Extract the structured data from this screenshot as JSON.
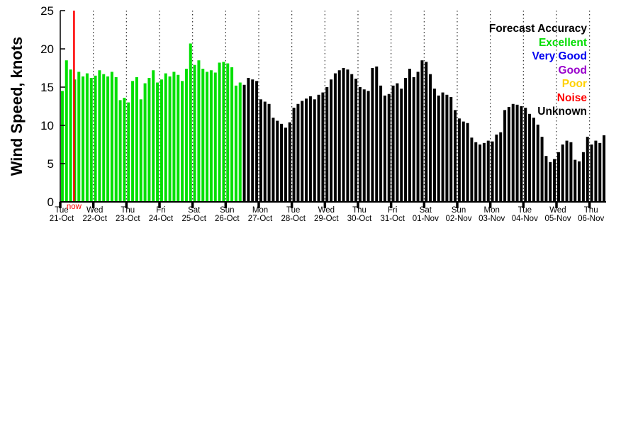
{
  "figure": {
    "ylabel": "Wind Speed, knots",
    "now_label": "now",
    "now_color": "#ff0000",
    "background": "#ffffff"
  },
  "legend": {
    "title": "Forecast Accuracy",
    "entries": [
      {
        "label": "Excellent",
        "color": "#00dd00"
      },
      {
        "label": "Very Good",
        "color": "#0000f0"
      },
      {
        "label": "Good",
        "color": "#9900cc"
      },
      {
        "label": "Poor",
        "color": "#ffd000"
      },
      {
        "label": "Noise",
        "color": "#ff0000"
      },
      {
        "label": "Unknown",
        "color": "#000000"
      }
    ]
  },
  "chart_data": {
    "type": "bar",
    "title": "",
    "xlabel": "",
    "ylabel": "Wind Speed, knots",
    "ylim": [
      0,
      25
    ],
    "yticks": [
      0,
      5,
      10,
      15,
      20,
      25
    ],
    "grid": "vertical-dotted-at-day-boundaries",
    "legend_position": "upper-right",
    "hours_per_point": 3,
    "total_days": 16.5,
    "now_hours": 10,
    "excellent_count": 44,
    "bar_colors": {
      "excellent": "#00df00",
      "unknown": "#000000"
    },
    "x_day_labels": [
      {
        "day": "Tue",
        "date": "21-Oct"
      },
      {
        "day": "Wed",
        "date": "22-Oct"
      },
      {
        "day": "Thu",
        "date": "23-Oct"
      },
      {
        "day": "Fri",
        "date": "24-Oct"
      },
      {
        "day": "Sat",
        "date": "25-Oct"
      },
      {
        "day": "Sun",
        "date": "26-Oct"
      },
      {
        "day": "Mon",
        "date": "27-Oct"
      },
      {
        "day": "Tue",
        "date": "28-Oct"
      },
      {
        "day": "Wed",
        "date": "29-Oct"
      },
      {
        "day": "Thu",
        "date": "30-Oct"
      },
      {
        "day": "Fri",
        "date": "31-Oct"
      },
      {
        "day": "Sat",
        "date": "01-Nov"
      },
      {
        "day": "Sun",
        "date": "02-Nov"
      },
      {
        "day": "Mon",
        "date": "03-Nov"
      },
      {
        "day": "Tue",
        "date": "04-Nov"
      },
      {
        "day": "Wed",
        "date": "05-Nov"
      },
      {
        "day": "Thu",
        "date": "06-Nov"
      }
    ],
    "values": [
      14.5,
      18.5,
      17.3,
      16.0,
      17.0,
      16.4,
      16.8,
      16.2,
      16.5,
      17.2,
      16.7,
      16.4,
      17.0,
      16.3,
      13.3,
      13.6,
      13.0,
      15.8,
      16.3,
      13.4,
      15.5,
      16.2,
      17.2,
      15.6,
      16.0,
      16.8,
      16.4,
      17.0,
      16.6,
      15.8,
      17.4,
      20.7,
      17.9,
      18.5,
      17.4,
      17.0,
      17.2,
      16.9,
      18.2,
      18.3,
      18.1,
      17.6,
      15.2,
      15.6,
      15.3,
      16.2,
      16.0,
      15.8,
      13.4,
      13.1,
      12.8,
      11.0,
      10.6,
      10.2,
      9.7,
      10.4,
      12.3,
      12.8,
      13.2,
      13.5,
      13.8,
      13.4,
      14.0,
      14.3,
      15.0,
      16.0,
      16.8,
      17.2,
      17.5,
      17.3,
      16.7,
      16.1,
      15.0,
      14.7,
      14.5,
      17.5,
      17.7,
      15.2,
      13.9,
      14.1,
      15.2,
      15.5,
      14.8,
      16.2,
      17.4,
      16.3,
      17.0,
      18.5,
      18.3,
      16.7,
      14.8,
      13.9,
      14.3,
      14.0,
      13.7,
      12.0,
      10.9,
      10.5,
      10.3,
      8.4,
      7.8,
      7.5,
      7.7,
      8.0,
      7.9,
      8.8,
      9.1,
      12.0,
      12.4,
      12.8,
      12.7,
      12.5,
      12.3,
      11.5,
      11.0,
      10.1,
      8.5,
      6.0,
      5.2,
      5.6,
      6.5,
      7.5,
      8.0,
      7.8,
      5.5,
      5.3,
      6.5,
      8.5,
      7.5,
      8.0,
      7.7,
      8.7
    ]
  }
}
